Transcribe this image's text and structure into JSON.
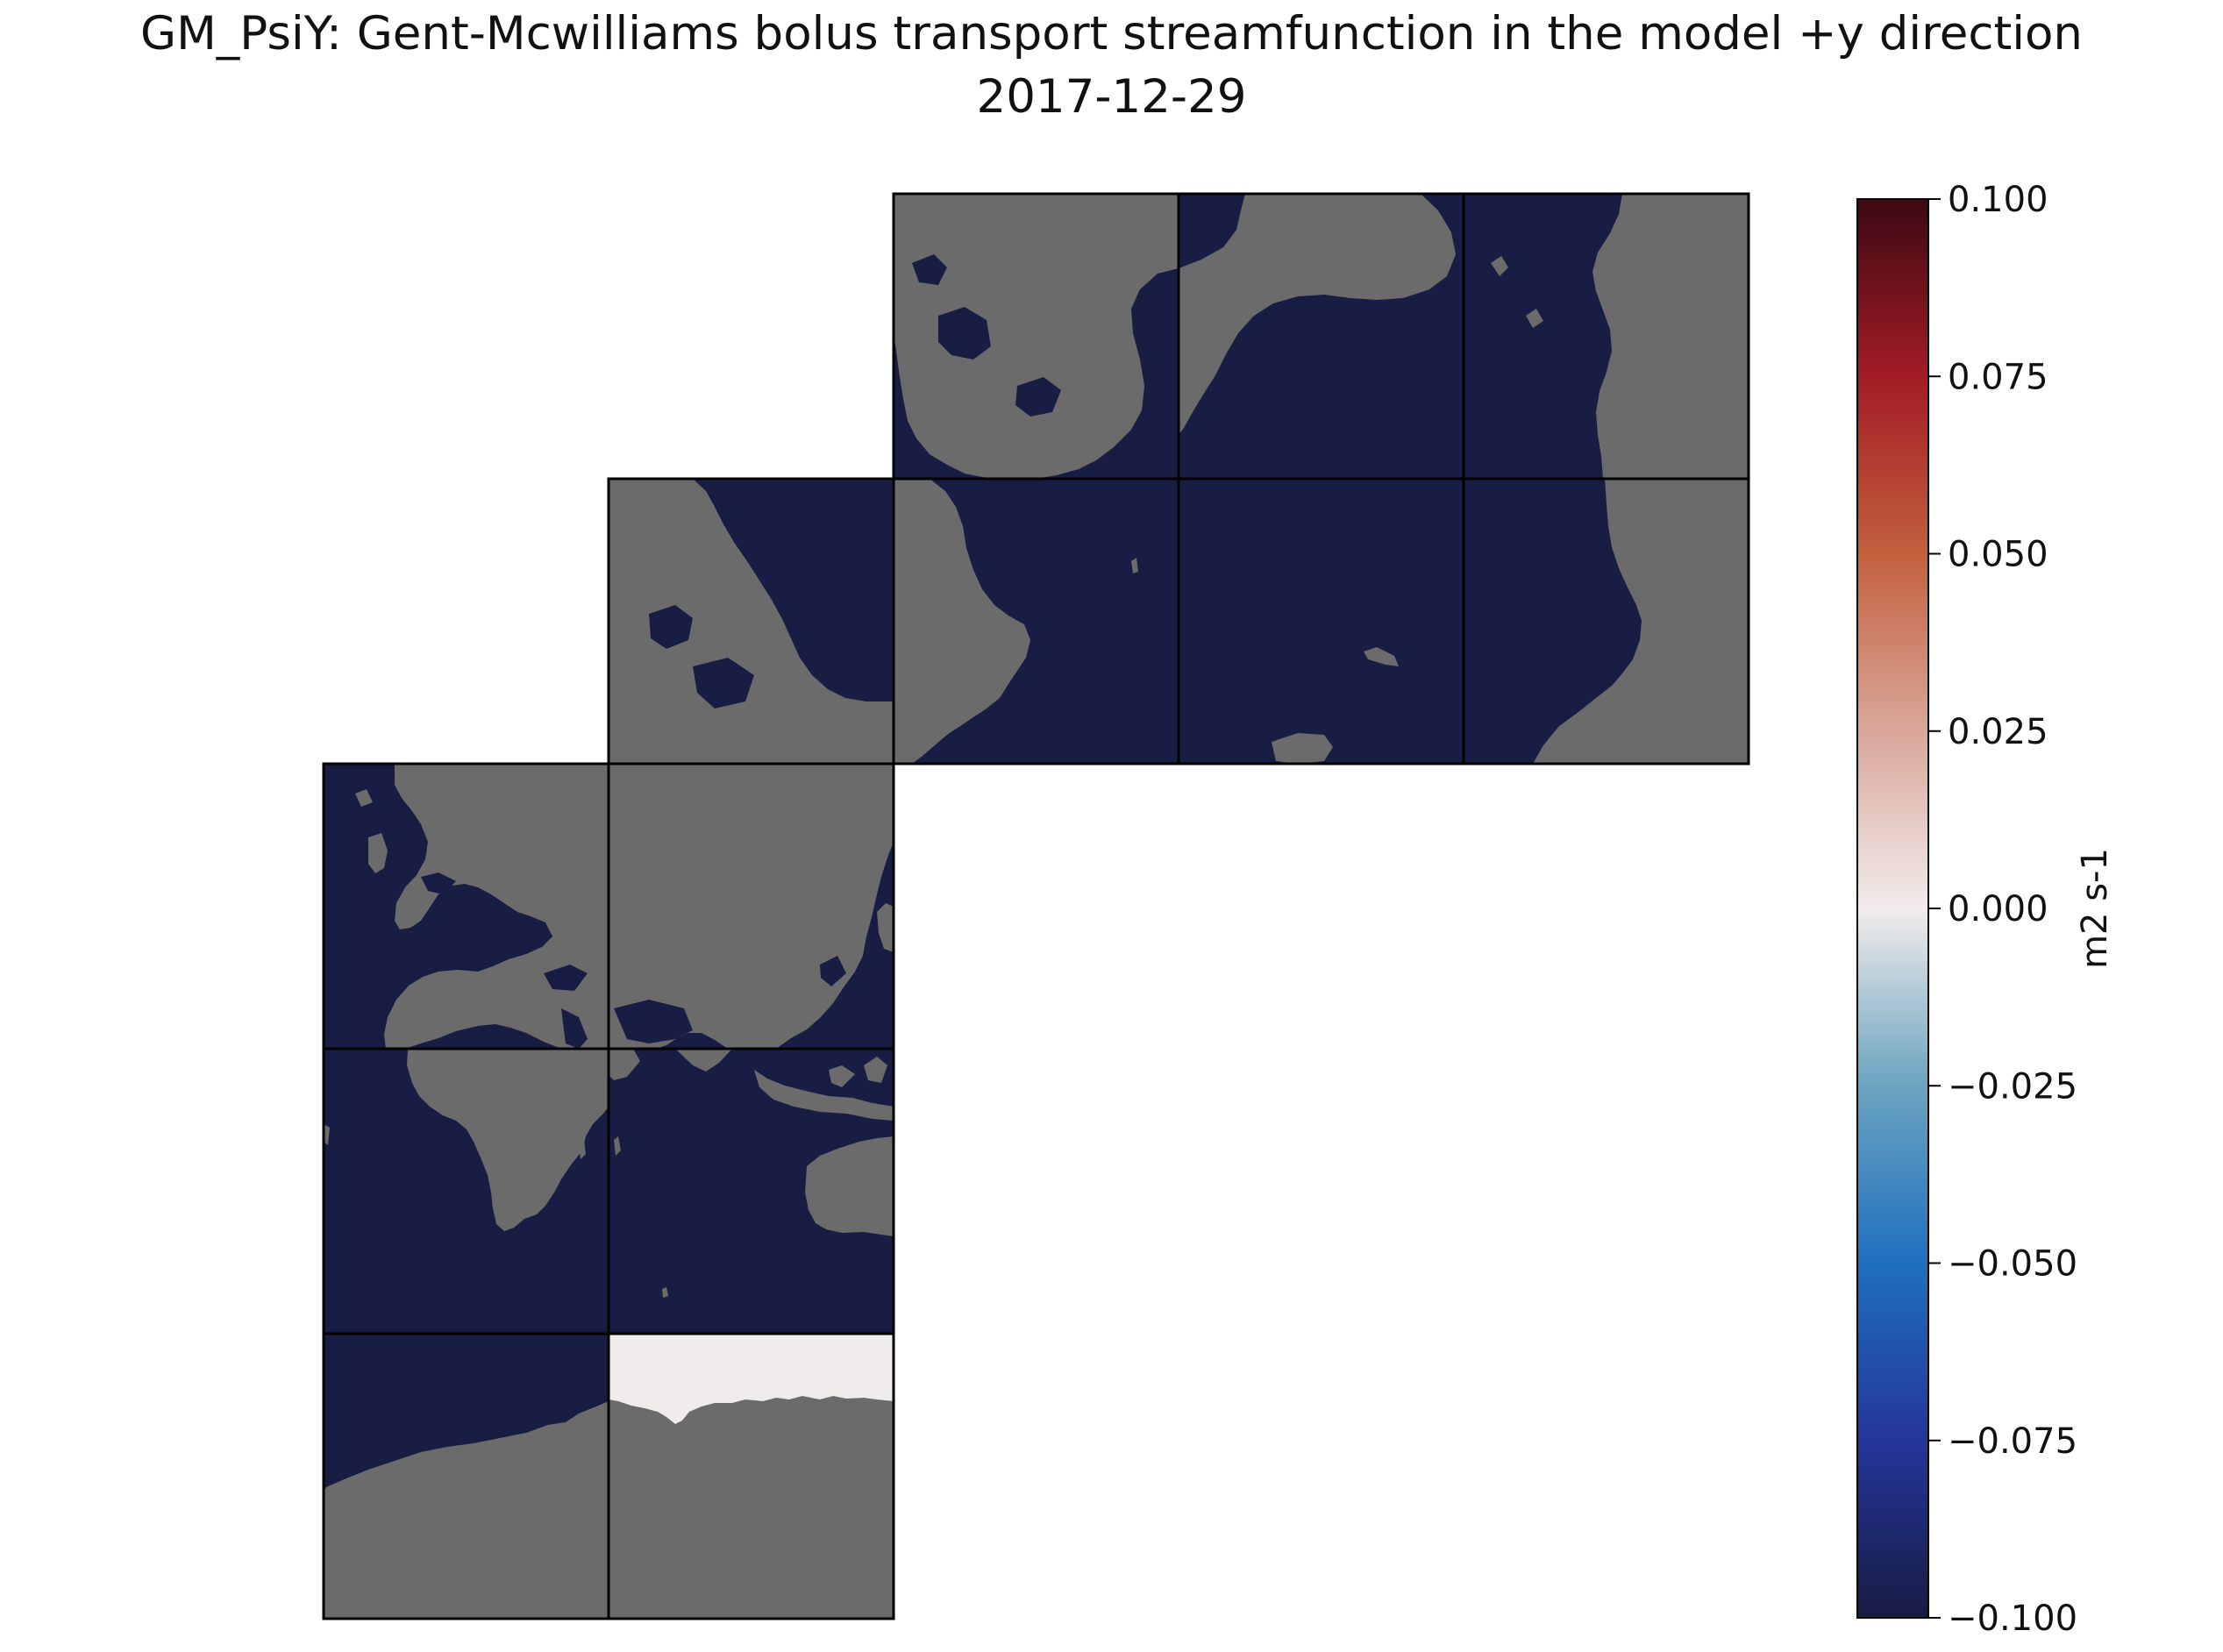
{
  "chart_data": {
    "type": "heatmap",
    "title": "GM_PsiY: Gent-Mcwilliams bolus transport streamfunction in the model +y direction",
    "subtitle": "2017-12-29",
    "grid": "LLC cubed-sphere, 13 tiles (3x3 block panels)",
    "values_observed": {
      "ocean": -0.1,
      "southern_strip_tile": 0.0
    },
    "land_color": "#6b6b6b",
    "colorbar": {
      "label": "m2 s-1",
      "range": [
        -0.1,
        0.1
      ],
      "ticks": [
        "0.100",
        "0.075",
        "0.050",
        "0.025",
        "0.000",
        "−0.025",
        "−0.050",
        "−0.075",
        "−0.100"
      ],
      "tick_values": [
        0.1,
        0.075,
        0.05,
        0.025,
        0.0,
        -0.025,
        -0.05,
        -0.075,
        -0.1
      ],
      "colormap": "balance",
      "stops": [
        {
          "v": -0.1,
          "c": "#181c43"
        },
        {
          "v": -0.075,
          "c": "#24359a"
        },
        {
          "v": -0.05,
          "c": "#1f6fbf"
        },
        {
          "v": -0.025,
          "c": "#6ba4bf"
        },
        {
          "v": 0.0,
          "c": "#f1eceb"
        },
        {
          "v": 0.025,
          "c": "#d9a79a"
        },
        {
          "v": 0.05,
          "c": "#c2603d"
        },
        {
          "v": 0.075,
          "c": "#a31c26"
        },
        {
          "v": 0.1,
          "c": "#3c0912"
        }
      ]
    },
    "colors": {
      "ocean": "#181d43",
      "land": "#6b6b6b",
      "zero": "#f0ecec",
      "grid_line": "#000000"
    }
  }
}
